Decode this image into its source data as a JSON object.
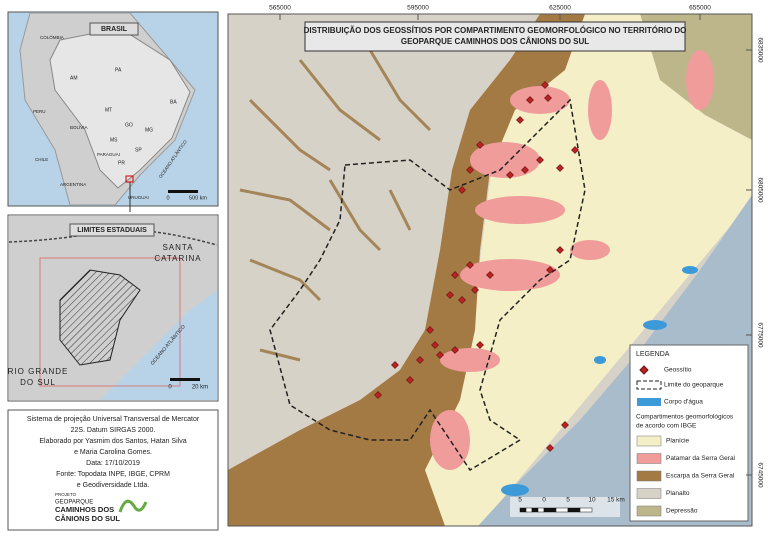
{
  "map": {
    "title": [
      "DISTRIBUIÇÃO DOS GEOSSÍTIOS POR COMPARTIMENTO GEOMORFOLÓGICO NO TERRITÓRIO DO",
      "GEOPARQUE CAMINHOS DOS CÂNIONS DO SUL"
    ],
    "x_coords": [
      "565000",
      "595000",
      "625000",
      "655000"
    ],
    "y_coords": [
      "6835000",
      "6805000",
      "6775000",
      "6745000"
    ],
    "scale_bar": [
      "5",
      "0",
      "5",
      "10",
      "15 km"
    ]
  },
  "legend": {
    "title": "LEGENDA",
    "symbols": [
      "Geossítio",
      "Limite do geoparque",
      "Corpo d'água"
    ],
    "subtitle": [
      "Compartimentos geomorfológicos",
      "de acordo com IBGE"
    ],
    "classes": [
      "Planície",
      "Patamar da Serra Geral",
      "Escarpa da Serra Geral",
      "Planalto",
      "Depressão"
    ]
  },
  "inset_brasil": {
    "title": "BRASIL",
    "labels": [
      "COLÔMBIA",
      "PERU",
      "BOLÍVIA",
      "CHILE",
      "ARGENTINA",
      "PARAGUAI",
      "URUGUAI",
      "OCEANO ATLÂNTICO",
      "AM",
      "PA",
      "MT",
      "BA",
      "MG",
      "GO",
      "MS",
      "SP",
      "PR"
    ],
    "scale": [
      "0",
      "500 km"
    ]
  },
  "inset_states": {
    "title": "LIMITES ESTADUAIS",
    "labels": [
      "SANTA",
      "CATARINA",
      "RIO GRANDE",
      "DO SUL",
      "OCEANO ATLÂNTICO"
    ],
    "scale": [
      "0",
      "20 km"
    ]
  },
  "credits": [
    "Sistema de projeção Universal Transversal de Mercator",
    "22S. Datum SIRGAS 2000.",
    "Elaborado por Yasmim dos Santos, Hatan Silva",
    "e Maria Carolina Gomes.",
    "Data: 17/10/2019",
    "Fonte: Topodata INPE, IBGE, CPRM",
    "e Geodiversidade Ltda."
  ],
  "logo": [
    "PROJETO",
    "GEOPARQUE",
    "CAMINHOS DOS",
    "CÂNIONS DO SUL"
  ]
}
